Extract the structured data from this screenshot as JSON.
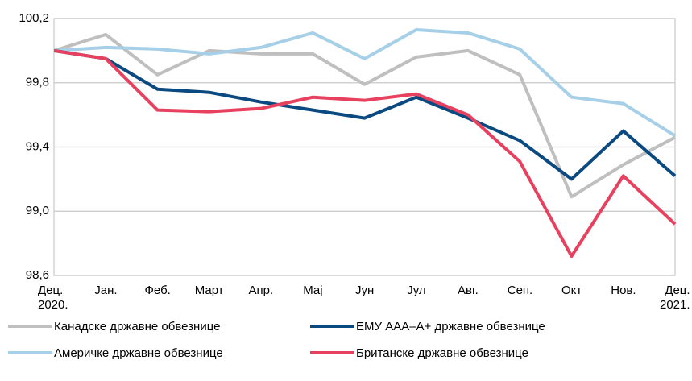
{
  "chart_data": {
    "type": "line",
    "categories": [
      "Дец.\n2020.",
      "Јан.",
      "Феб.",
      "Март",
      "Апр.",
      "Мај",
      "Јун",
      "Јул",
      "Авг.",
      "Сеп.",
      "Окт",
      "Нов.",
      "Дец.\n2021."
    ],
    "series": [
      {
        "name": "Канадске државне обвезнице",
        "color": "#bfbfbf",
        "values": [
          100.0,
          100.1,
          99.85,
          100.0,
          99.98,
          99.98,
          99.79,
          99.96,
          100.0,
          99.85,
          99.09,
          99.29,
          99.46
        ]
      },
      {
        "name": "Америчке државне обвезнице",
        "color": "#a6cfe8",
        "values": [
          100.0,
          100.02,
          100.01,
          99.98,
          100.02,
          100.11,
          99.95,
          100.13,
          100.11,
          100.01,
          99.71,
          99.67,
          99.47
        ]
      },
      {
        "name": "ЕМУ ААА–А+ државне обвезнице",
        "color": "#0b4a80",
        "values": [
          100.0,
          99.95,
          99.76,
          99.74,
          99.68,
          99.63,
          99.58,
          99.71,
          99.58,
          99.44,
          99.2,
          99.5,
          99.22
        ]
      },
      {
        "name": "Британске државне обвезнице",
        "color": "#e8415f",
        "values": [
          100.0,
          99.95,
          99.63,
          99.62,
          99.64,
          99.71,
          99.69,
          99.73,
          99.6,
          99.31,
          98.72,
          99.22,
          98.92
        ]
      }
    ],
    "ylim": [
      98.6,
      100.2
    ],
    "yticks": [
      {
        "value": 98.6,
        "label": "98,6"
      },
      {
        "value": 99.0,
        "label": "99,0"
      },
      {
        "value": 99.4,
        "label": "99,4"
      },
      {
        "value": 99.8,
        "label": "99,8"
      },
      {
        "value": 100.2,
        "label": "100,2"
      }
    ],
    "grid": true
  }
}
